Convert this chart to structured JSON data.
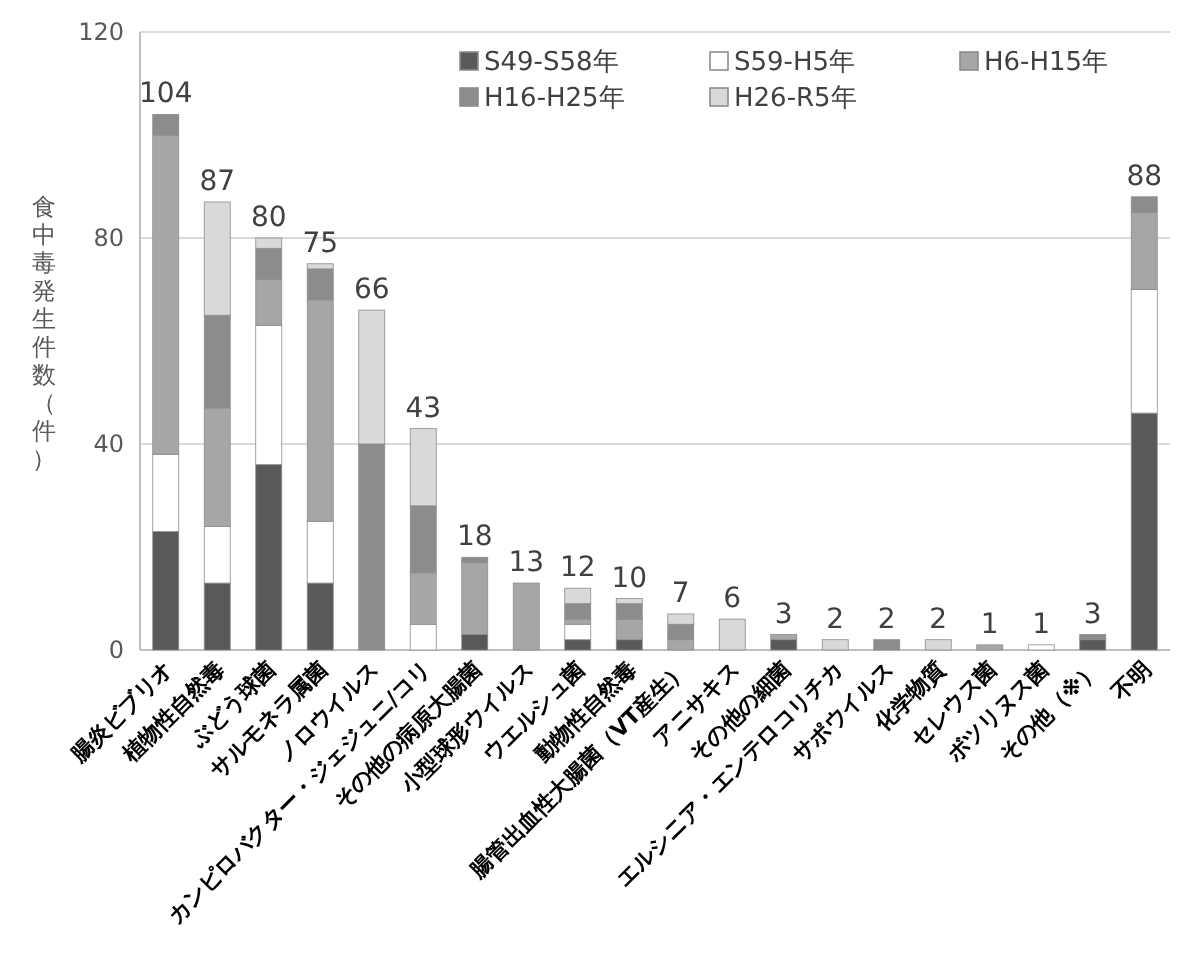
{
  "chart_data": {
    "type": "bar",
    "stacked": true,
    "ylabel": "食中毒発生件数（件）",
    "categories": [
      "腸炎ビブリオ",
      "植物性自然毒",
      "ぶどう球菌",
      "サルモネラ属菌",
      "ノロウイルス",
      "カンピロバクター・ジェジュニ/コリ",
      "その他の病原大腸菌",
      "小型球形ウイルス",
      "ウエルシュ菌",
      "動物性自然毒",
      "腸管出血性大腸菌（VT産生）",
      "アニサキス",
      "その他の細菌",
      "エルシニア・エンテロコリチカ",
      "サポウイルス",
      "化学物質",
      "セレウス菌",
      "ボツリヌス菌",
      "その他（※）",
      "不明"
    ],
    "series": [
      {
        "name": "S49-S58年",
        "color": "#595959",
        "values": [
          23,
          13,
          36,
          13,
          0,
          0,
          3,
          0,
          2,
          2,
          0,
          0,
          2,
          0,
          0,
          0,
          0,
          0,
          2,
          46
        ]
      },
      {
        "name": "S59-H5年",
        "color": "#ffffff",
        "values": [
          15,
          11,
          27,
          12,
          0,
          5,
          0,
          0,
          3,
          0,
          0,
          0,
          0,
          0,
          0,
          0,
          0,
          1,
          0,
          24
        ]
      },
      {
        "name": "H6-H15年",
        "color": "#a6a6a6",
        "values": [
          62,
          23,
          9,
          43,
          0,
          10,
          14,
          13,
          1,
          4,
          2,
          0,
          1,
          0,
          0,
          0,
          1,
          0,
          0,
          15
        ]
      },
      {
        "name": "H16-H25年",
        "color": "#8c8c8c",
        "values": [
          4,
          18,
          6,
          6,
          40,
          13,
          1,
          0,
          3,
          3,
          3,
          0,
          0,
          0,
          2,
          0,
          0,
          0,
          1,
          3
        ]
      },
      {
        "name": "H26-R5年",
        "color": "#d9d9d9",
        "values": [
          0,
          22,
          2,
          1,
          26,
          15,
          0,
          0,
          3,
          1,
          2,
          6,
          0,
          2,
          0,
          2,
          0,
          0,
          0,
          0
        ]
      }
    ],
    "totals": [
      "104",
      "87",
      "80",
      "75",
      "66",
      "43",
      "18",
      "13",
      "12",
      "10",
      "7",
      "6",
      "3",
      "2",
      "2",
      "2",
      "1",
      "1",
      "3",
      "88"
    ],
    "ylim": [
      0,
      120
    ],
    "yticks": [
      0,
      40,
      80,
      120
    ],
    "grid": "y",
    "legend": "top"
  }
}
